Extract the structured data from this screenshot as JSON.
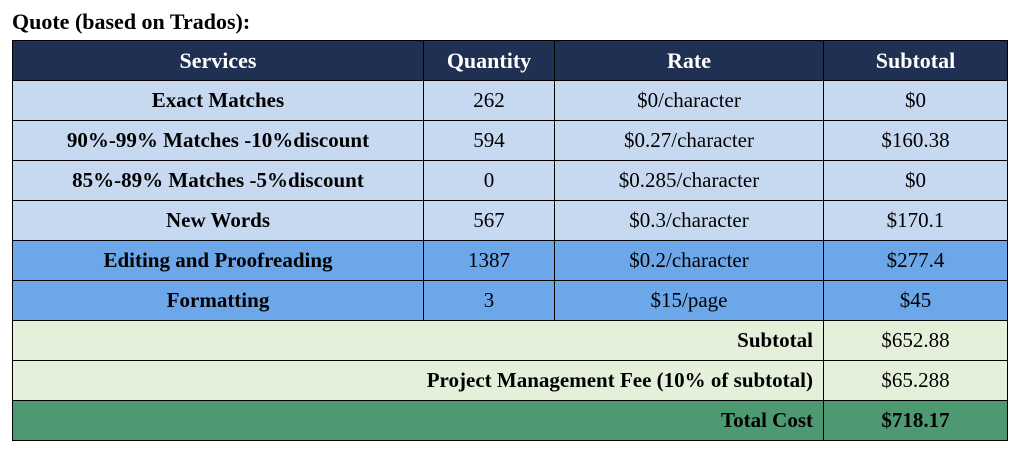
{
  "title": "Quote (based on Trados):",
  "colors": {
    "header_bg": "#1f3052",
    "matches_bg": "#c7d9f1",
    "services_bg": "#6ca7ea",
    "summary_bg": "#e4f0da",
    "total_bg": "#4d9a72"
  },
  "table": {
    "headers": [
      "Services",
      "Quantity",
      "Rate",
      "Subtotal"
    ],
    "rows": [
      {
        "service": "Exact Matches",
        "quantity": "262",
        "rate": "$0/character",
        "subtotal": "$0"
      },
      {
        "service": "90%-99% Matches -10%discount",
        "quantity": "594",
        "rate": "$0.27/character",
        "subtotal": "$160.38"
      },
      {
        "service": "85%-89% Matches -5%discount",
        "quantity": "0",
        "rate": "$0.285/character",
        "subtotal": "$0"
      },
      {
        "service": "New Words",
        "quantity": "567",
        "rate": "$0.3/character",
        "subtotal": "$170.1"
      },
      {
        "service": "Editing and Proofreading",
        "quantity": "1387",
        "rate": "$0.2/character",
        "subtotal": "$277.4"
      },
      {
        "service": "Formatting",
        "quantity": "3",
        "rate": "$15/page",
        "subtotal": "$45"
      }
    ],
    "summary": [
      {
        "label": "Subtotal",
        "value": "$652.88"
      },
      {
        "label": "Project Management Fee (10% of subtotal)",
        "value": "$65.288"
      }
    ],
    "total": {
      "label": "Total Cost",
      "value": "$718.17"
    }
  }
}
